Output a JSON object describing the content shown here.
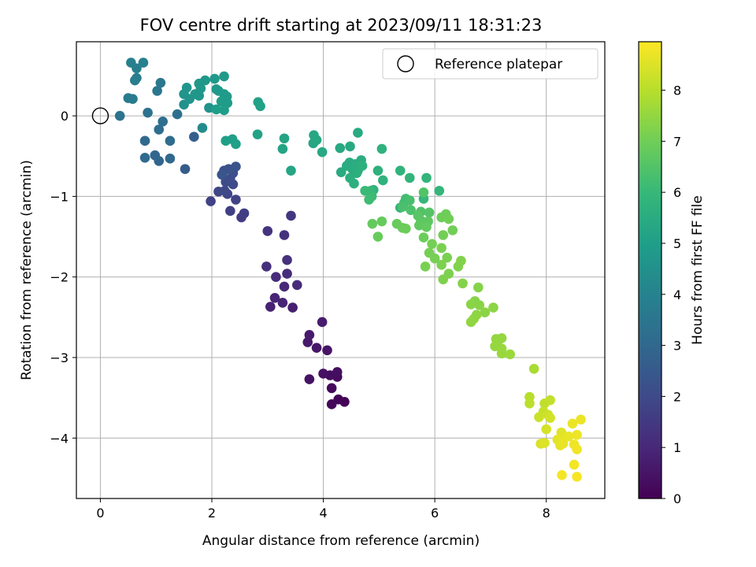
{
  "chart_data": {
    "type": "scatter",
    "title": "FOV centre drift starting at 2023/09/11 18:31:23",
    "xlabel": "Angular distance from reference (arcmin)",
    "ylabel": "Rotation from reference (arcmin)",
    "xlim": [
      -0.43,
      9.05
    ],
    "ylim": [
      -4.75,
      0.92
    ],
    "xticks": [
      0,
      2,
      4,
      6,
      8
    ],
    "yticks": [
      0,
      -1,
      -2,
      -3,
      -4
    ],
    "grid": true,
    "legend": {
      "placement": "top-right",
      "entries": [
        "Reference platepar"
      ]
    },
    "reference_point": {
      "x": 0,
      "y": 0,
      "label": "Reference platepar"
    },
    "colorbar": {
      "label": "Hours from first FF file",
      "colormap": "viridis",
      "range": [
        0,
        8.95
      ],
      "ticks": [
        0,
        1,
        2,
        3,
        4,
        5,
        6,
        7,
        8
      ],
      "colors": [
        "#440154",
        "#482878",
        "#3e4a89",
        "#31688e",
        "#26828e",
        "#1f9e89",
        "#35b779",
        "#6dcd59",
        "#b4de2c",
        "#fde725"
      ]
    },
    "points": [
      {
        "x": 4.38,
        "y": -3.55,
        "h": 0.05
      },
      {
        "x": 4.27,
        "y": -3.52,
        "h": 0.1
      },
      {
        "x": 4.15,
        "y": -3.58,
        "h": 0.15
      },
      {
        "x": 4.15,
        "y": -3.38,
        "h": 0.2
      },
      {
        "x": 4.25,
        "y": -3.24,
        "h": 0.25
      },
      {
        "x": 4.12,
        "y": -3.22,
        "h": 0.3
      },
      {
        "x": 4.25,
        "y": -3.18,
        "h": 0.35
      },
      {
        "x": 4.0,
        "y": -3.2,
        "h": 0.4
      },
      {
        "x": 3.75,
        "y": -3.27,
        "h": 0.45
      },
      {
        "x": 4.07,
        "y": -2.91,
        "h": 0.5
      },
      {
        "x": 3.88,
        "y": -2.88,
        "h": 0.55
      },
      {
        "x": 3.72,
        "y": -2.81,
        "h": 0.6
      },
      {
        "x": 3.75,
        "y": -2.72,
        "h": 0.65
      },
      {
        "x": 3.98,
        "y": -2.56,
        "h": 0.7
      },
      {
        "x": 3.45,
        "y": -2.38,
        "h": 0.8
      },
      {
        "x": 3.05,
        "y": -2.37,
        "h": 0.85
      },
      {
        "x": 3.27,
        "y": -2.32,
        "h": 0.9
      },
      {
        "x": 3.13,
        "y": -2.26,
        "h": 0.95
      },
      {
        "x": 3.3,
        "y": -2.12,
        "h": 1.0
      },
      {
        "x": 3.53,
        "y": -2.1,
        "h": 1.05
      },
      {
        "x": 3.15,
        "y": -2.0,
        "h": 1.1
      },
      {
        "x": 3.35,
        "y": -1.96,
        "h": 1.15
      },
      {
        "x": 2.98,
        "y": -1.87,
        "h": 1.2
      },
      {
        "x": 3.35,
        "y": -1.79,
        "h": 1.25
      },
      {
        "x": 3.3,
        "y": -1.48,
        "h": 1.3
      },
      {
        "x": 3.0,
        "y": -1.43,
        "h": 1.35
      },
      {
        "x": 3.42,
        "y": -1.24,
        "h": 1.4
      },
      {
        "x": 2.53,
        "y": -1.26,
        "h": 1.6
      },
      {
        "x": 2.58,
        "y": -1.21,
        "h": 1.65
      },
      {
        "x": 2.33,
        "y": -1.18,
        "h": 1.7
      },
      {
        "x": 1.98,
        "y": -1.06,
        "h": 1.75
      },
      {
        "x": 2.43,
        "y": -1.04,
        "h": 1.8
      },
      {
        "x": 2.28,
        "y": -0.97,
        "h": 1.85
      },
      {
        "x": 2.12,
        "y": -0.94,
        "h": 1.9
      },
      {
        "x": 2.23,
        "y": -0.93,
        "h": 1.95
      },
      {
        "x": 2.38,
        "y": -0.85,
        "h": 2.0
      },
      {
        "x": 2.25,
        "y": -0.82,
        "h": 2.05
      },
      {
        "x": 2.33,
        "y": -0.78,
        "h": 2.1
      },
      {
        "x": 2.38,
        "y": -0.71,
        "h": 2.15
      },
      {
        "x": 2.22,
        "y": -0.68,
        "h": 2.2
      },
      {
        "x": 2.3,
        "y": -0.66,
        "h": 2.25
      },
      {
        "x": 2.43,
        "y": -0.63,
        "h": 2.3
      },
      {
        "x": 2.18,
        "y": -0.73,
        "h": 2.35
      },
      {
        "x": 1.52,
        "y": -0.66,
        "h": 2.6
      },
      {
        "x": 1.68,
        "y": -0.26,
        "h": 2.7
      },
      {
        "x": 1.05,
        "y": -0.56,
        "h": 2.9
      },
      {
        "x": 0.98,
        "y": -0.49,
        "h": 2.95
      },
      {
        "x": 1.25,
        "y": -0.53,
        "h": 3.0
      },
      {
        "x": 0.8,
        "y": -0.52,
        "h": 3.05
      },
      {
        "x": 0.8,
        "y": -0.31,
        "h": 3.1
      },
      {
        "x": 1.25,
        "y": -0.31,
        "h": 3.15
      },
      {
        "x": 1.05,
        "y": -0.17,
        "h": 3.2
      },
      {
        "x": 1.12,
        "y": -0.07,
        "h": 3.25
      },
      {
        "x": 1.38,
        "y": 0.02,
        "h": 3.3
      },
      {
        "x": 0.85,
        "y": 0.04,
        "h": 3.35
      },
      {
        "x": 0.35,
        "y": 0.0,
        "h": 3.4
      },
      {
        "x": 1.02,
        "y": 0.31,
        "h": 3.5
      },
      {
        "x": 1.08,
        "y": 0.41,
        "h": 3.55
      },
      {
        "x": 0.5,
        "y": 0.22,
        "h": 3.65
      },
      {
        "x": 0.58,
        "y": 0.21,
        "h": 3.7
      },
      {
        "x": 0.62,
        "y": 0.44,
        "h": 3.75
      },
      {
        "x": 0.65,
        "y": 0.47,
        "h": 3.8
      },
      {
        "x": 0.65,
        "y": 0.59,
        "h": 3.85
      },
      {
        "x": 0.55,
        "y": 0.66,
        "h": 3.9
      },
      {
        "x": 0.77,
        "y": 0.66,
        "h": 3.95
      },
      {
        "x": 1.83,
        "y": -0.15,
        "h": 4.3
      },
      {
        "x": 1.5,
        "y": 0.14,
        "h": 4.5
      },
      {
        "x": 1.95,
        "y": 0.1,
        "h": 4.55
      },
      {
        "x": 1.6,
        "y": 0.21,
        "h": 4.6
      },
      {
        "x": 1.5,
        "y": 0.27,
        "h": 4.62
      },
      {
        "x": 1.55,
        "y": 0.35,
        "h": 4.65
      },
      {
        "x": 1.7,
        "y": 0.27,
        "h": 4.68
      },
      {
        "x": 1.77,
        "y": 0.25,
        "h": 4.7
      },
      {
        "x": 1.8,
        "y": 0.34,
        "h": 4.72
      },
      {
        "x": 1.77,
        "y": 0.4,
        "h": 4.74
      },
      {
        "x": 1.88,
        "y": 0.44,
        "h": 4.76
      },
      {
        "x": 2.05,
        "y": 0.46,
        "h": 4.78
      },
      {
        "x": 2.22,
        "y": 0.49,
        "h": 4.8
      },
      {
        "x": 2.08,
        "y": 0.33,
        "h": 4.82
      },
      {
        "x": 2.12,
        "y": 0.31,
        "h": 4.84
      },
      {
        "x": 2.22,
        "y": 0.27,
        "h": 4.86
      },
      {
        "x": 2.27,
        "y": 0.24,
        "h": 4.88
      },
      {
        "x": 2.17,
        "y": 0.18,
        "h": 4.9
      },
      {
        "x": 2.28,
        "y": 0.16,
        "h": 4.92
      },
      {
        "x": 2.22,
        "y": 0.07,
        "h": 4.94
      },
      {
        "x": 2.08,
        "y": 0.08,
        "h": 4.96
      },
      {
        "x": 2.37,
        "y": -0.29,
        "h": 5.0
      },
      {
        "x": 2.25,
        "y": -0.31,
        "h": 5.02
      },
      {
        "x": 2.43,
        "y": -0.35,
        "h": 5.04
      },
      {
        "x": 2.83,
        "y": 0.17,
        "h": 5.1
      },
      {
        "x": 2.87,
        "y": 0.12,
        "h": 5.12
      },
      {
        "x": 2.82,
        "y": -0.23,
        "h": 5.15
      },
      {
        "x": 3.27,
        "y": -0.41,
        "h": 5.2
      },
      {
        "x": 3.3,
        "y": -0.28,
        "h": 5.22
      },
      {
        "x": 3.42,
        "y": -0.68,
        "h": 5.25
      },
      {
        "x": 3.82,
        "y": -0.34,
        "h": 5.3
      },
      {
        "x": 3.83,
        "y": -0.24,
        "h": 5.32
      },
      {
        "x": 3.88,
        "y": -0.3,
        "h": 5.34
      },
      {
        "x": 3.98,
        "y": -0.45,
        "h": 5.36
      },
      {
        "x": 4.3,
        "y": -0.4,
        "h": 5.4
      },
      {
        "x": 4.48,
        "y": -0.38,
        "h": 5.42
      },
      {
        "x": 4.62,
        "y": -0.21,
        "h": 5.44
      },
      {
        "x": 4.32,
        "y": -0.7,
        "h": 5.46
      },
      {
        "x": 4.42,
        "y": -0.62,
        "h": 5.48
      },
      {
        "x": 4.47,
        "y": -0.58,
        "h": 5.5
      },
      {
        "x": 4.52,
        "y": -0.66,
        "h": 5.52
      },
      {
        "x": 4.57,
        "y": -0.6,
        "h": 5.54
      },
      {
        "x": 4.62,
        "y": -0.68,
        "h": 5.56
      },
      {
        "x": 4.68,
        "y": -0.55,
        "h": 5.58
      },
      {
        "x": 4.48,
        "y": -0.77,
        "h": 5.6
      },
      {
        "x": 4.6,
        "y": -0.71,
        "h": 5.62
      },
      {
        "x": 4.7,
        "y": -0.62,
        "h": 5.64
      },
      {
        "x": 4.55,
        "y": -0.84,
        "h": 5.66
      },
      {
        "x": 4.98,
        "y": -0.68,
        "h": 5.7
      },
      {
        "x": 5.05,
        "y": -0.41,
        "h": 5.72
      },
      {
        "x": 5.07,
        "y": -0.8,
        "h": 5.74
      },
      {
        "x": 4.9,
        "y": -0.92,
        "h": 5.76
      },
      {
        "x": 5.38,
        "y": -0.68,
        "h": 5.8
      },
      {
        "x": 5.38,
        "y": -1.14,
        "h": 5.82
      },
      {
        "x": 5.55,
        "y": -0.77,
        "h": 5.84
      },
      {
        "x": 5.85,
        "y": -0.77,
        "h": 5.86
      },
      {
        "x": 6.08,
        "y": -0.93,
        "h": 5.9
      },
      {
        "x": 5.8,
        "y": -1.03,
        "h": 5.95
      },
      {
        "x": 4.85,
        "y": -0.93,
        "h": 6.0
      },
      {
        "x": 4.75,
        "y": -0.93,
        "h": 6.05
      },
      {
        "x": 4.87,
        "y": -1.0,
        "h": 6.1
      },
      {
        "x": 4.82,
        "y": -1.04,
        "h": 6.15
      },
      {
        "x": 5.48,
        "y": -1.03,
        "h": 6.2
      },
      {
        "x": 5.45,
        "y": -1.08,
        "h": 6.25
      },
      {
        "x": 5.55,
        "y": -1.05,
        "h": 6.3
      },
      {
        "x": 5.42,
        "y": -1.13,
        "h": 6.35
      },
      {
        "x": 5.57,
        "y": -1.17,
        "h": 6.4
      },
      {
        "x": 5.75,
        "y": -1.19,
        "h": 6.45
      },
      {
        "x": 5.8,
        "y": -0.95,
        "h": 6.5
      },
      {
        "x": 5.9,
        "y": -1.2,
        "h": 6.55
      },
      {
        "x": 5.7,
        "y": -1.24,
        "h": 6.6
      },
      {
        "x": 5.75,
        "y": -1.3,
        "h": 6.65
      },
      {
        "x": 5.88,
        "y": -1.31,
        "h": 6.7
      },
      {
        "x": 5.72,
        "y": -1.36,
        "h": 6.75
      },
      {
        "x": 5.85,
        "y": -1.38,
        "h": 6.8
      },
      {
        "x": 4.88,
        "y": -1.34,
        "h": 6.82
      },
      {
        "x": 5.05,
        "y": -1.31,
        "h": 6.84
      },
      {
        "x": 4.98,
        "y": -1.5,
        "h": 6.86
      },
      {
        "x": 5.32,
        "y": -1.34,
        "h": 6.88
      },
      {
        "x": 5.42,
        "y": -1.39,
        "h": 6.9
      },
      {
        "x": 5.48,
        "y": -1.4,
        "h": 6.92
      },
      {
        "x": 5.8,
        "y": -1.51,
        "h": 6.94
      },
      {
        "x": 6.12,
        "y": -1.26,
        "h": 6.96
      },
      {
        "x": 6.2,
        "y": -1.22,
        "h": 6.98
      },
      {
        "x": 6.25,
        "y": -1.28,
        "h": 7.0
      },
      {
        "x": 6.32,
        "y": -1.42,
        "h": 7.02
      },
      {
        "x": 6.15,
        "y": -1.48,
        "h": 7.04
      },
      {
        "x": 5.95,
        "y": -1.59,
        "h": 7.06
      },
      {
        "x": 5.9,
        "y": -1.7,
        "h": 7.08
      },
      {
        "x": 6.0,
        "y": -1.77,
        "h": 7.1
      },
      {
        "x": 5.83,
        "y": -1.87,
        "h": 7.12
      },
      {
        "x": 6.12,
        "y": -1.64,
        "h": 7.14
      },
      {
        "x": 6.22,
        "y": -1.76,
        "h": 7.16
      },
      {
        "x": 6.12,
        "y": -1.85,
        "h": 7.18
      },
      {
        "x": 6.25,
        "y": -1.96,
        "h": 7.2
      },
      {
        "x": 6.15,
        "y": -2.03,
        "h": 7.22
      },
      {
        "x": 6.42,
        "y": -1.87,
        "h": 7.24
      },
      {
        "x": 6.47,
        "y": -1.8,
        "h": 7.26
      },
      {
        "x": 6.5,
        "y": -2.08,
        "h": 7.28
      },
      {
        "x": 6.78,
        "y": -2.13,
        "h": 7.3
      },
      {
        "x": 6.72,
        "y": -2.3,
        "h": 7.32
      },
      {
        "x": 6.8,
        "y": -2.35,
        "h": 7.34
      },
      {
        "x": 6.65,
        "y": -2.34,
        "h": 7.36
      },
      {
        "x": 6.9,
        "y": -2.44,
        "h": 7.38
      },
      {
        "x": 7.05,
        "y": -2.38,
        "h": 7.4
      },
      {
        "x": 6.75,
        "y": -2.47,
        "h": 7.42
      },
      {
        "x": 6.7,
        "y": -2.52,
        "h": 7.44
      },
      {
        "x": 6.65,
        "y": -2.56,
        "h": 7.46
      },
      {
        "x": 7.1,
        "y": -2.77,
        "h": 7.48
      },
      {
        "x": 7.2,
        "y": -2.76,
        "h": 7.5
      },
      {
        "x": 7.12,
        "y": -2.82,
        "h": 7.52
      },
      {
        "x": 7.08,
        "y": -2.86,
        "h": 7.54
      },
      {
        "x": 7.2,
        "y": -2.89,
        "h": 7.56
      },
      {
        "x": 7.2,
        "y": -2.95,
        "h": 7.58
      },
      {
        "x": 7.35,
        "y": -2.96,
        "h": 7.6
      },
      {
        "x": 7.78,
        "y": -3.14,
        "h": 7.8
      },
      {
        "x": 7.7,
        "y": -3.49,
        "h": 8.0
      },
      {
        "x": 7.7,
        "y": -3.57,
        "h": 8.05
      },
      {
        "x": 7.97,
        "y": -3.57,
        "h": 8.1
      },
      {
        "x": 8.07,
        "y": -3.53,
        "h": 8.15
      },
      {
        "x": 7.95,
        "y": -3.67,
        "h": 8.2
      },
      {
        "x": 7.87,
        "y": -3.74,
        "h": 8.25
      },
      {
        "x": 8.03,
        "y": -3.71,
        "h": 8.3
      },
      {
        "x": 8.07,
        "y": -3.75,
        "h": 8.35
      },
      {
        "x": 8.0,
        "y": -3.89,
        "h": 8.4
      },
      {
        "x": 7.9,
        "y": -4.07,
        "h": 8.45
      },
      {
        "x": 7.97,
        "y": -4.06,
        "h": 8.5
      },
      {
        "x": 8.27,
        "y": -3.93,
        "h": 8.55
      },
      {
        "x": 8.2,
        "y": -4.02,
        "h": 8.6
      },
      {
        "x": 8.3,
        "y": -4.02,
        "h": 8.62
      },
      {
        "x": 8.25,
        "y": -4.09,
        "h": 8.64
      },
      {
        "x": 8.3,
        "y": -4.07,
        "h": 8.66
      },
      {
        "x": 8.4,
        "y": -3.98,
        "h": 8.68
      },
      {
        "x": 8.47,
        "y": -3.82,
        "h": 8.7
      },
      {
        "x": 8.62,
        "y": -3.77,
        "h": 8.72
      },
      {
        "x": 8.55,
        "y": -3.96,
        "h": 8.74
      },
      {
        "x": 8.5,
        "y": -4.08,
        "h": 8.76
      },
      {
        "x": 8.55,
        "y": -4.14,
        "h": 8.78
      },
      {
        "x": 8.5,
        "y": -4.33,
        "h": 8.8
      },
      {
        "x": 8.28,
        "y": -4.46,
        "h": 8.82
      },
      {
        "x": 8.55,
        "y": -4.48,
        "h": 8.85
      }
    ]
  }
}
